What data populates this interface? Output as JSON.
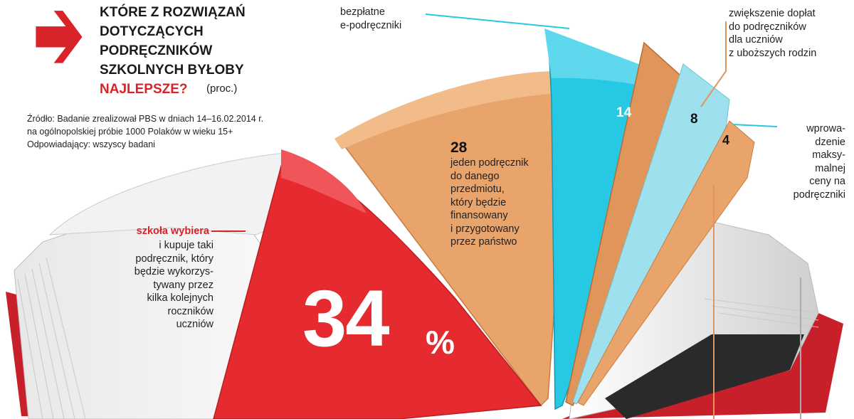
{
  "title_lines": [
    "KTÓRE Z ROZWIĄZAŃ",
    "DOTYCZĄCYCH",
    "PODRĘCZNIKÓW",
    "SZKOLNYCH BYŁOBY"
  ],
  "title_highlight": "NAJLEPSZE?",
  "unit": "(proc.)",
  "source_lines": [
    "Źródło: Badanie zrealizował PBS w dniach 14–16.02.2014 r.",
    "na ogólnopolskiej próbie 1000 Polaków w wieku 15+",
    "Odpowiadający: wszyscy badani"
  ],
  "colors": {
    "accent": "#d8232a",
    "slice_red": "#e52b2f",
    "slice_orange": "#e9a46b",
    "slice_cyan": "#27c8e4",
    "slice_orange2": "#e0955b",
    "slice_lightcyan": "#9fe0ee",
    "book_cover": "#d8232a"
  },
  "arrow_icon": "right-arrow-icon",
  "chart_data": {
    "type": "pie",
    "title": "Które z rozwiązań dotyczących podręczników szkolnych byłoby najlepsze? (proc.)",
    "categories": [
      "szkoła wybiera i kupuje taki podręcznik, który będzie wykorzystywany przez kilka kolejnych roczników uczniów",
      "jeden podręcznik do danego przedmiotu, który będzie finansowany i przygotowany przez państwo",
      "bezpłatne e-podręczniki",
      "zwiększenie dopłat do podręczników dla uczniów z uboższych rodzin",
      "wprowadzenie maksymalnej ceny na podręczniki"
    ],
    "values": [
      34,
      28,
      14,
      8,
      4
    ],
    "value_labels": [
      "34",
      "28",
      "14",
      "8",
      "4"
    ],
    "percent_sign": "%",
    "label_lines": {
      "szkola_red": "szkoła wybiera",
      "szkola": [
        "i kupuje taki",
        "podręcznik, który",
        "będzie wykorzys-",
        "tywany przez",
        "kilka kolejnych",
        "roczników",
        "uczniów"
      ],
      "jeden": [
        "jeden podręcznik",
        "do danego",
        "przedmiotu,",
        "który będzie",
        "finansowany",
        "i przygotowany",
        "przez państwo"
      ],
      "bezplatne": [
        "bezpłatne",
        "e-podręczniki"
      ],
      "doplaty": [
        "zwiększenie dopłat",
        "do podręczników",
        "dla uczniów",
        "z uboższych rodzin"
      ],
      "cena": [
        "wprowa-",
        "dzenie",
        "maksy-",
        "malnej",
        "ceny na",
        "podręczniki"
      ]
    }
  }
}
